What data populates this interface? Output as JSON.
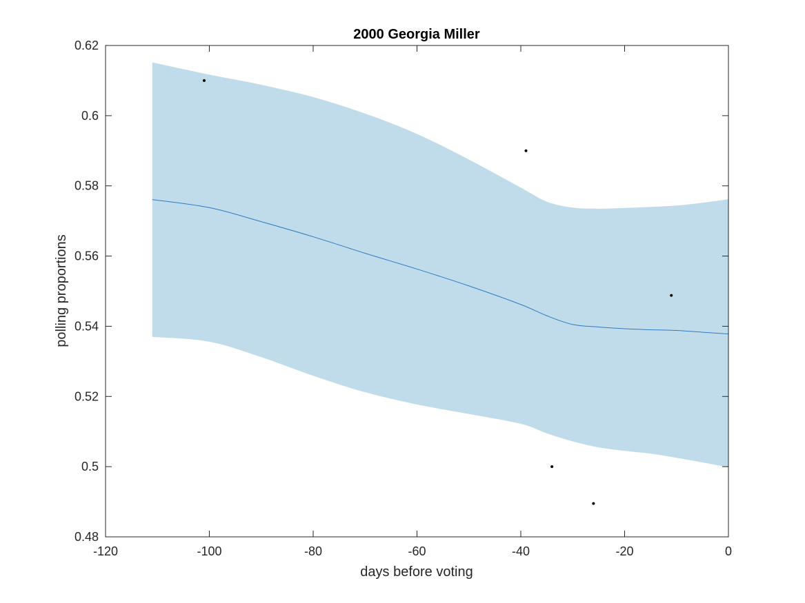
{
  "chart_data": {
    "type": "line",
    "title": "2000 Georgia Miller",
    "xlabel": "days before voting",
    "ylabel": "polling proportions",
    "xlim": [
      -120,
      0
    ],
    "ylim": [
      0.48,
      0.62
    ],
    "xticks": [
      -120,
      -100,
      -80,
      -60,
      -40,
      -20,
      0
    ],
    "yticks": [
      0.48,
      0.5,
      0.52,
      0.54,
      0.56,
      0.58,
      0.6,
      0.62
    ],
    "xtick_labels": [
      "-120",
      "-100",
      "-80",
      "-60",
      "-40",
      "-20",
      "0"
    ],
    "ytick_labels": [
      "0.48",
      "0.5",
      "0.52",
      "0.54",
      "0.56",
      "0.58",
      "0.6",
      "0.62"
    ],
    "grid": false,
    "colors": {
      "band": "#c0dcea",
      "line": "#2f79c1",
      "points": "#000000",
      "axes": "#262626"
    },
    "series": [
      {
        "kind": "band",
        "x": [
          -111,
          -100,
          -90,
          -80,
          -70,
          -60,
          -50,
          -40,
          -35,
          -30,
          -25,
          -20,
          -15,
          -10,
          -5,
          0
        ],
        "upper": [
          0.6152,
          0.6117,
          0.6088,
          0.6053,
          0.6006,
          0.5948,
          0.5875,
          0.5795,
          0.5755,
          0.5738,
          0.5735,
          0.5737,
          0.574,
          0.5744,
          0.5752,
          0.5762
        ],
        "lower": [
          0.537,
          0.5356,
          0.5312,
          0.5259,
          0.5212,
          0.5177,
          0.515,
          0.5122,
          0.5095,
          0.5072,
          0.5055,
          0.5045,
          0.5037,
          0.5025,
          0.5012,
          0.4998
        ]
      },
      {
        "kind": "line",
        "x": [
          -111,
          -100,
          -90,
          -80,
          -70,
          -60,
          -50,
          -40,
          -35,
          -30,
          -25,
          -20,
          -15,
          -10,
          -5,
          0
        ],
        "y": [
          0.5761,
          0.5738,
          0.5698,
          0.5655,
          0.5608,
          0.5563,
          0.5515,
          0.5462,
          0.543,
          0.5405,
          0.5398,
          0.5393,
          0.539,
          0.5388,
          0.5383,
          0.5378
        ]
      },
      {
        "kind": "scatter",
        "x": [
          -101,
          -39,
          -34,
          -26,
          -11
        ],
        "y": [
          0.61,
          0.59,
          0.5,
          0.4895,
          0.5488
        ]
      }
    ]
  }
}
